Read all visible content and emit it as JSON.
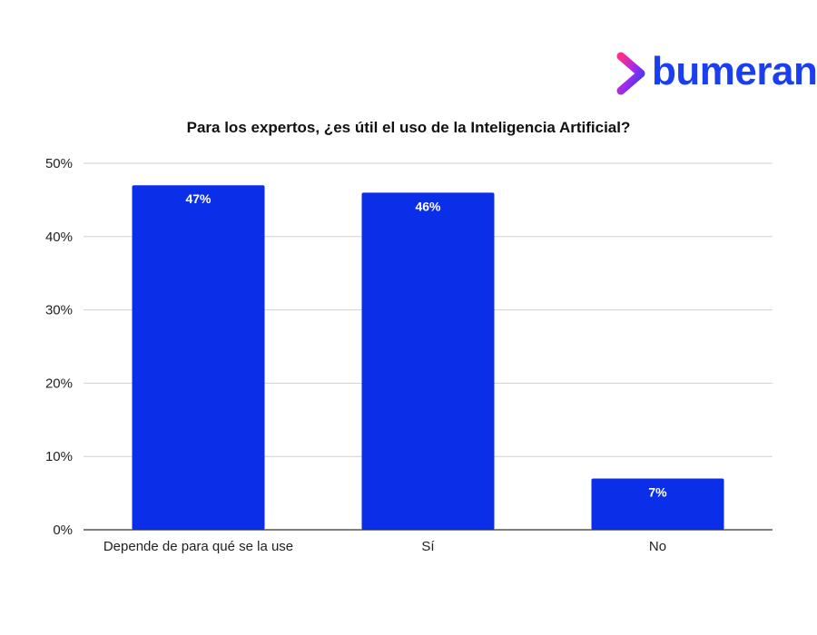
{
  "brand": {
    "name": "bumeran",
    "colors": {
      "blue": "#1a3ef0",
      "pink": "#ff2d8a",
      "purple": "#7b2cf0"
    }
  },
  "chart_data": {
    "type": "bar",
    "title": "Para los expertos, ¿es útil el uso de la Inteligencia Artificial?",
    "categories": [
      "Depende de para qué se la use",
      "Sí",
      "No"
    ],
    "values": [
      47,
      46,
      7
    ],
    "data_labels": [
      "47%",
      "46%",
      "7%"
    ],
    "yticks": [
      0,
      10,
      20,
      30,
      40,
      50
    ],
    "ytick_labels": [
      "0%",
      "10%",
      "20%",
      "30%",
      "40%",
      "50%"
    ],
    "ylim": [
      0,
      50
    ],
    "grid": true,
    "bar_color": "#0b2fe8",
    "xlabel": "",
    "ylabel": ""
  }
}
